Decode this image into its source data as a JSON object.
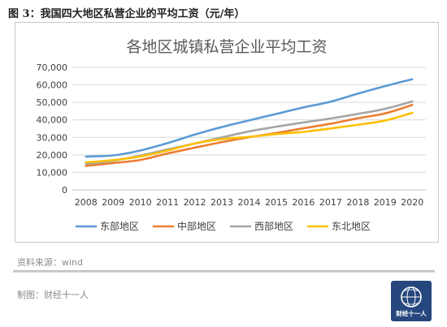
{
  "figure": {
    "title": "图 3：我国四大地区私营企业的平均工资（元/年）"
  },
  "chart_data": {
    "type": "line",
    "title": "各地区城镇私营企业平均工资",
    "xlabel": "",
    "ylabel": "",
    "x": [
      "2008",
      "2009",
      "2010",
      "2011",
      "2012",
      "2013",
      "2014",
      "2015",
      "2016",
      "2017",
      "2018",
      "2019",
      "2020"
    ],
    "ylim": [
      0,
      70000
    ],
    "yticks": [
      0,
      10000,
      20000,
      30000,
      40000,
      50000,
      60000,
      70000
    ],
    "ytick_labels": [
      "0",
      "10,000",
      "20,000",
      "30,000",
      "40,000",
      "50,000",
      "60,000",
      "70,000"
    ],
    "grid": true,
    "legend_position": "bottom",
    "series": [
      {
        "name": "东部地区",
        "color": "#5b9bd5",
        "values": [
          19000,
          19700,
          22500,
          26700,
          31600,
          35900,
          39700,
          43400,
          47100,
          50400,
          55000,
          59300,
          63200
        ]
      },
      {
        "name": "中部地区",
        "color": "#ed7d31",
        "values": [
          13700,
          15300,
          17100,
          20800,
          24100,
          27300,
          30100,
          32500,
          35200,
          37800,
          40900,
          43700,
          48500
        ]
      },
      {
        "name": "西部地区",
        "color": "#a5a5a5",
        "values": [
          14800,
          16600,
          19600,
          23100,
          26500,
          30000,
          33400,
          36100,
          38500,
          40800,
          43400,
          46300,
          50500
        ]
      },
      {
        "name": "东北地区",
        "color": "#ffc000",
        "values": [
          15700,
          17000,
          19100,
          22500,
          26500,
          29000,
          30300,
          31900,
          33100,
          35100,
          37200,
          39600,
          44000
        ]
      }
    ]
  },
  "footer": {
    "source": "资料来源：wind",
    "made_by": "制图：财经十一人",
    "logo_text": "财经十一人"
  },
  "colors": {
    "logo_bg": "#26477d"
  }
}
